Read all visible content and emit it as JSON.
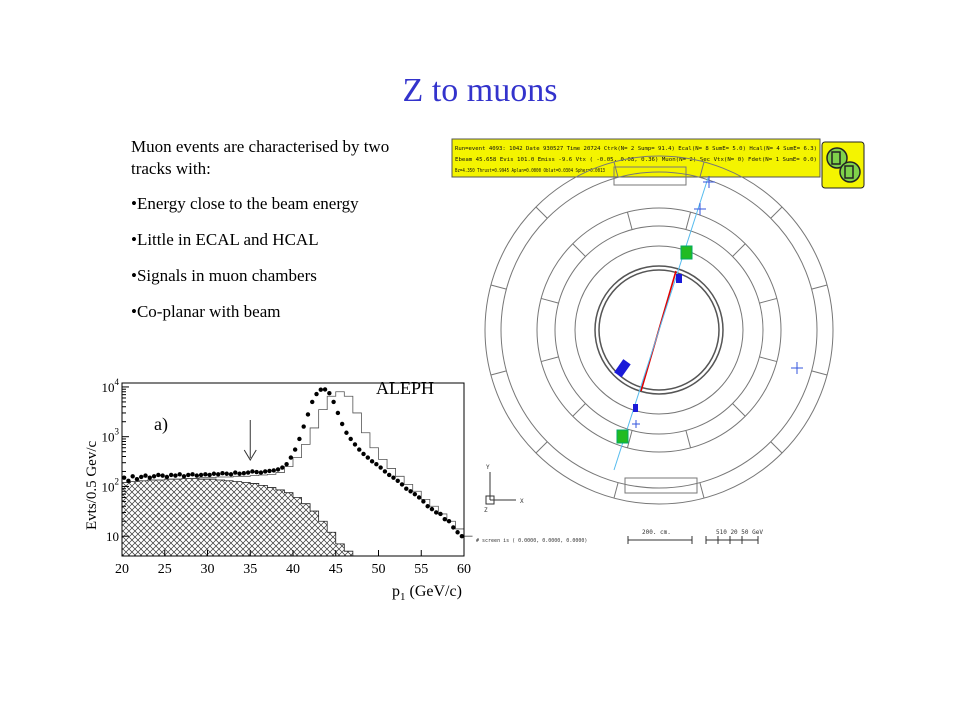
{
  "slide": {
    "title": "Z to muons",
    "intro": "Muon events are characterised by two tracks with:",
    "bullets": [
      "Energy close to the beam energy",
      "Little in ECAL and HCAL",
      "Signals in muon chambers",
      "Co-planar with beam"
    ]
  },
  "event_display": {
    "info_lines": [
      "Run=event 4093: 1042 Date 930527 Time 20724 Ctrk(N= 2 Sump= 91.4) Ecal(N= 8 SumE= 5.0) Hcal(N= 4 SumE= 6.3)",
      "Ebeam 45.658 Evis 101.0 Emiss -9.6 Vtx ( -0.05, 0.08, 0.36) Muon(N= 2) Sec Vtx(N= 0) Fdet(N= 1 SumE= 0.0)",
      "Bz=4.350 Thrust=0.9945 Aplan=0.0000 Oblat=0.0304 Spher=0.0013"
    ],
    "axis_y": "Y",
    "axis_x": "X",
    "axis_z": "Z",
    "screen_line": "# screen is ( 0.0000, 0.0000, 0.0000)",
    "scale_label": "200. cm.",
    "energy_scale": "510 20 50 GeV",
    "colors": {
      "panel_yellow": "#f4f400",
      "track": "#e00000",
      "ecal": "#1a1ad8",
      "hcal": "#22bb22",
      "muon": "#55bbee"
    }
  },
  "chart_data": {
    "type": "scatter",
    "experiment_label": "ALEPH",
    "panel_label": "a)",
    "ylabel": "Evts/0.5 Gev/c",
    "xlabel": "p",
    "xlabel_sub": "1",
    "xlabel_unit": " (GeV/c)",
    "yscale": "log",
    "xlim": [
      20,
      60
    ],
    "ylim": [
      4,
      12000
    ],
    "xticks": [
      20,
      25,
      30,
      35,
      40,
      45,
      50,
      55,
      60
    ],
    "yticks": [
      {
        "value": 10,
        "base": "10",
        "exp": ""
      },
      {
        "value": 100,
        "base": "10",
        "exp": "2"
      },
      {
        "value": 1000,
        "base": "10",
        "exp": "3"
      },
      {
        "value": 10000,
        "base": "10",
        "exp": "4"
      }
    ],
    "arrow_x": 35,
    "data_points": {
      "x": [
        20.25,
        20.75,
        21.25,
        21.75,
        22.25,
        22.75,
        23.25,
        23.75,
        24.25,
        24.75,
        25.25,
        25.75,
        26.25,
        26.75,
        27.25,
        27.75,
        28.25,
        28.75,
        29.25,
        29.75,
        30.25,
        30.75,
        31.25,
        31.75,
        32.25,
        32.75,
        33.25,
        33.75,
        34.25,
        34.75,
        35.25,
        35.75,
        36.25,
        36.75,
        37.25,
        37.75,
        38.25,
        38.75,
        39.25,
        39.75,
        40.25,
        40.75,
        41.25,
        41.75,
        42.25,
        42.75,
        43.25,
        43.75,
        44.25,
        44.75,
        45.25,
        45.75,
        46.25,
        46.75,
        47.25,
        47.75,
        48.25,
        48.75,
        49.25,
        49.75,
        50.25,
        50.75,
        51.25,
        51.75,
        52.25,
        52.75,
        53.25,
        53.75,
        54.25,
        54.75,
        55.25,
        55.75,
        56.25,
        56.75,
        57.25,
        57.75,
        58.25,
        58.75,
        59.25,
        59.75
      ],
      "y": [
        150,
        130,
        160,
        140,
        155,
        165,
        150,
        160,
        170,
        165,
        155,
        170,
        165,
        175,
        160,
        170,
        175,
        165,
        170,
        175,
        170,
        180,
        175,
        185,
        180,
        175,
        190,
        180,
        185,
        190,
        200,
        195,
        190,
        200,
        205,
        210,
        220,
        240,
        280,
        380,
        550,
        900,
        1600,
        2800,
        5000,
        7200,
        8800,
        8900,
        7500,
        5000,
        3000,
        1800,
        1200,
        900,
        700,
        550,
        450,
        380,
        320,
        280,
        240,
        200,
        170,
        150,
        130,
        110,
        90,
        80,
        70,
        60,
        50,
        40,
        35,
        30,
        28,
        22,
        20,
        15,
        12,
        10
      ]
    },
    "mc_total": {
      "x": [
        20,
        21,
        22,
        23,
        24,
        25,
        26,
        27,
        28,
        29,
        30,
        31,
        32,
        33,
        34,
        35,
        36,
        37,
        38,
        39,
        40,
        41,
        42,
        43,
        44,
        45,
        46,
        47,
        48,
        49,
        50,
        51,
        52,
        53,
        54,
        55,
        56,
        57,
        58,
        59,
        60
      ],
      "y": [
        120,
        125,
        130,
        135,
        135,
        140,
        140,
        145,
        145,
        150,
        150,
        155,
        155,
        160,
        160,
        165,
        170,
        175,
        190,
        250,
        380,
        700,
        1500,
        3500,
        6500,
        8000,
        6500,
        3000,
        1200,
        600,
        350,
        230,
        160,
        110,
        80,
        55,
        40,
        28,
        20,
        14,
        10
      ]
    },
    "background": {
      "x": [
        20,
        21,
        22,
        23,
        24,
        25,
        26,
        27,
        28,
        29,
        30,
        31,
        32,
        33,
        34,
        35,
        36,
        37,
        38,
        39,
        40,
        41,
        42,
        43,
        44,
        45,
        46,
        47
      ],
      "y": [
        120,
        125,
        130,
        135,
        135,
        140,
        140,
        145,
        145,
        140,
        140,
        135,
        130,
        125,
        120,
        115,
        105,
        95,
        85,
        75,
        60,
        45,
        32,
        20,
        12,
        7,
        5,
        4
      ]
    }
  }
}
